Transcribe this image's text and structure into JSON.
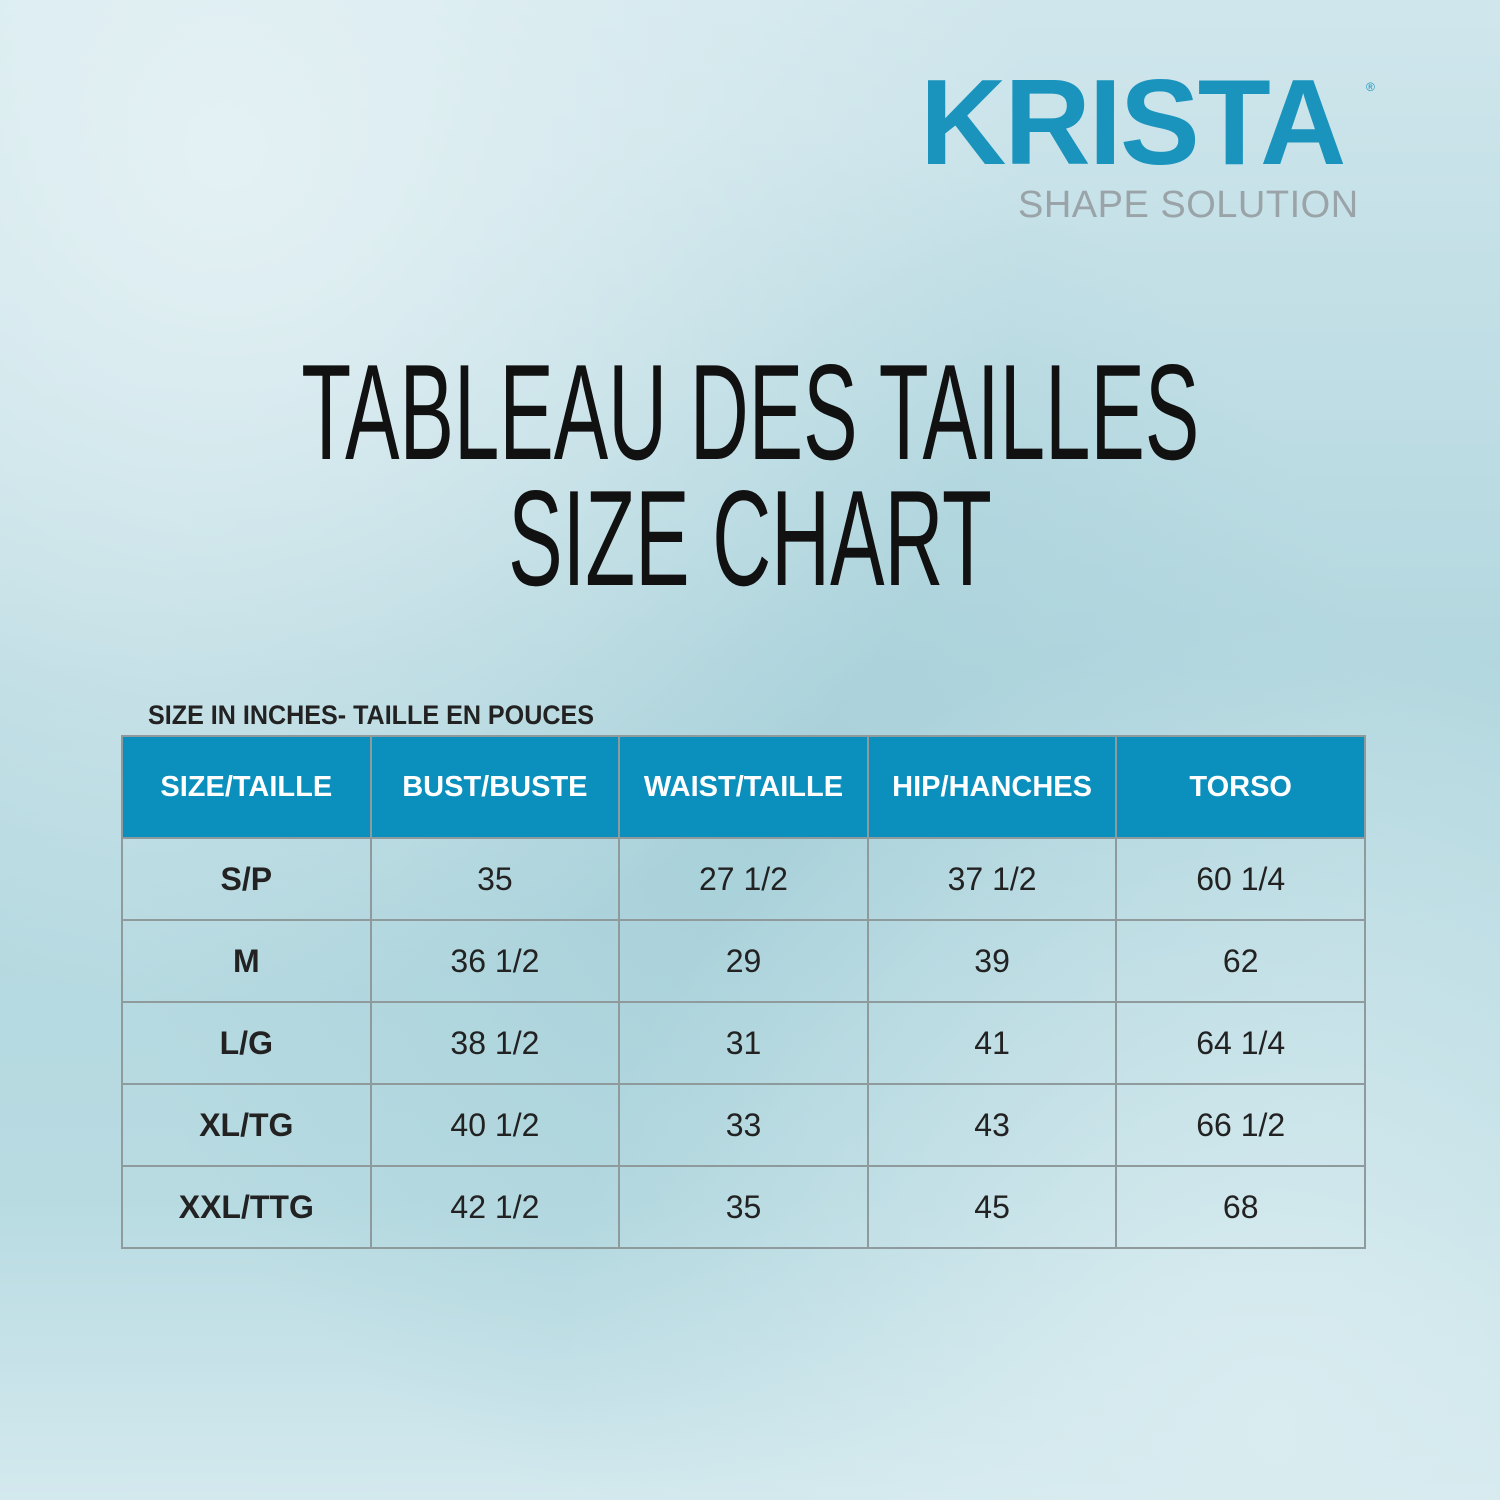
{
  "logo": {
    "brand": "KRISTA",
    "registered": "®",
    "tagline": "SHAPE SOLUTION",
    "brand_color": "#1a93bd"
  },
  "title": {
    "line1": "TABLEAU DES TAILLES",
    "line2": "SIZE CHART"
  },
  "caption": "SIZE IN INCHES- TAILLE EN POUCES",
  "table": {
    "header_color": "#0b8fbd",
    "headers": [
      "SIZE/TAILLE",
      "BUST/BUSTE",
      "WAIST/TAILLE",
      "HIP/HANCHES",
      "TORSO"
    ],
    "rows": [
      [
        "S/P",
        "35",
        "27 1/2",
        "37 1/2",
        "60 1/4"
      ],
      [
        "M",
        "36 1/2",
        "29",
        "39",
        "62"
      ],
      [
        "L/G",
        "38 1/2",
        "31",
        "41",
        "64 1/4"
      ],
      [
        "XL/TG",
        "40 1/2",
        "33",
        "43",
        "66 1/2"
      ],
      [
        "XXL/TTG",
        "42 1/2",
        "35",
        "45",
        "68"
      ]
    ]
  }
}
